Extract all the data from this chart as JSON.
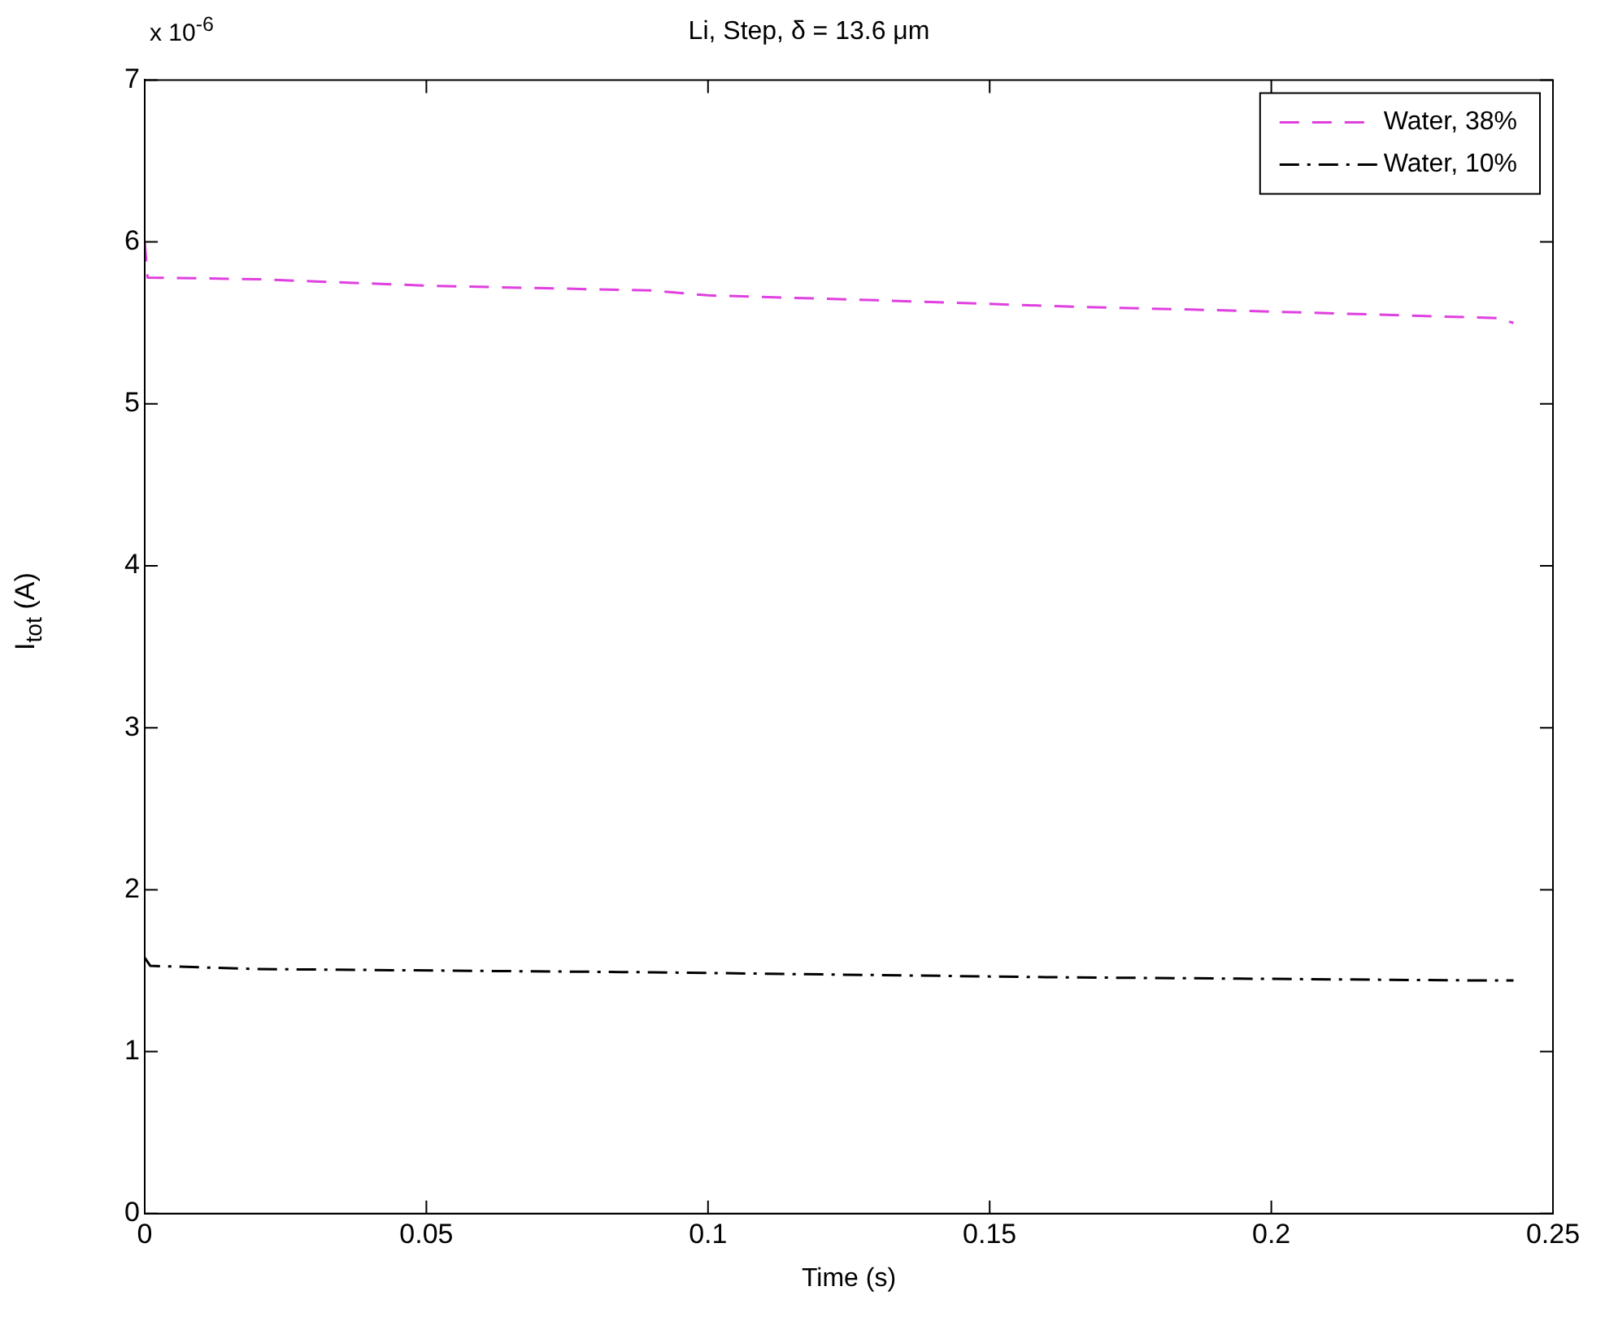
{
  "chart_data": {
    "type": "line",
    "title": "Li, Step, δ = 13.6 μm",
    "xlabel": "Time (s)",
    "ylabel": "I$_{tot}$ (A)",
    "annotations": [
      "x 10$^{-6}$"
    ],
    "xlim": [
      0,
      0.25
    ],
    "xticks": [
      0,
      0.05,
      0.1,
      0.15,
      0.2,
      0.25
    ],
    "ylim": [
      0,
      7
    ],
    "yticks": [
      0,
      1,
      2,
      3,
      4,
      5,
      6,
      7
    ],
    "grid": false,
    "legend": "top right",
    "marker": "none",
    "series": [
      {
        "name": "Water, 38%",
        "color": "#e040e0",
        "line_style": "dashed",
        "x": [
          0,
          0.0005,
          0.02,
          0.05,
          0.09,
          0.1,
          0.13,
          0.165,
          0.2,
          0.24,
          0.243
        ],
        "values": [
          6.0,
          5.78,
          5.77,
          5.73,
          5.7,
          5.67,
          5.64,
          5.6,
          5.57,
          5.53,
          5.5
        ]
      },
      {
        "name": "Water, 10%",
        "color": "#000000",
        "line_style": "dashdot",
        "x": [
          0,
          0.001,
          0.02,
          0.09,
          0.16,
          0.235,
          0.243
        ],
        "values": [
          1.58,
          1.53,
          1.51,
          1.49,
          1.46,
          1.44,
          1.44
        ]
      }
    ]
  }
}
